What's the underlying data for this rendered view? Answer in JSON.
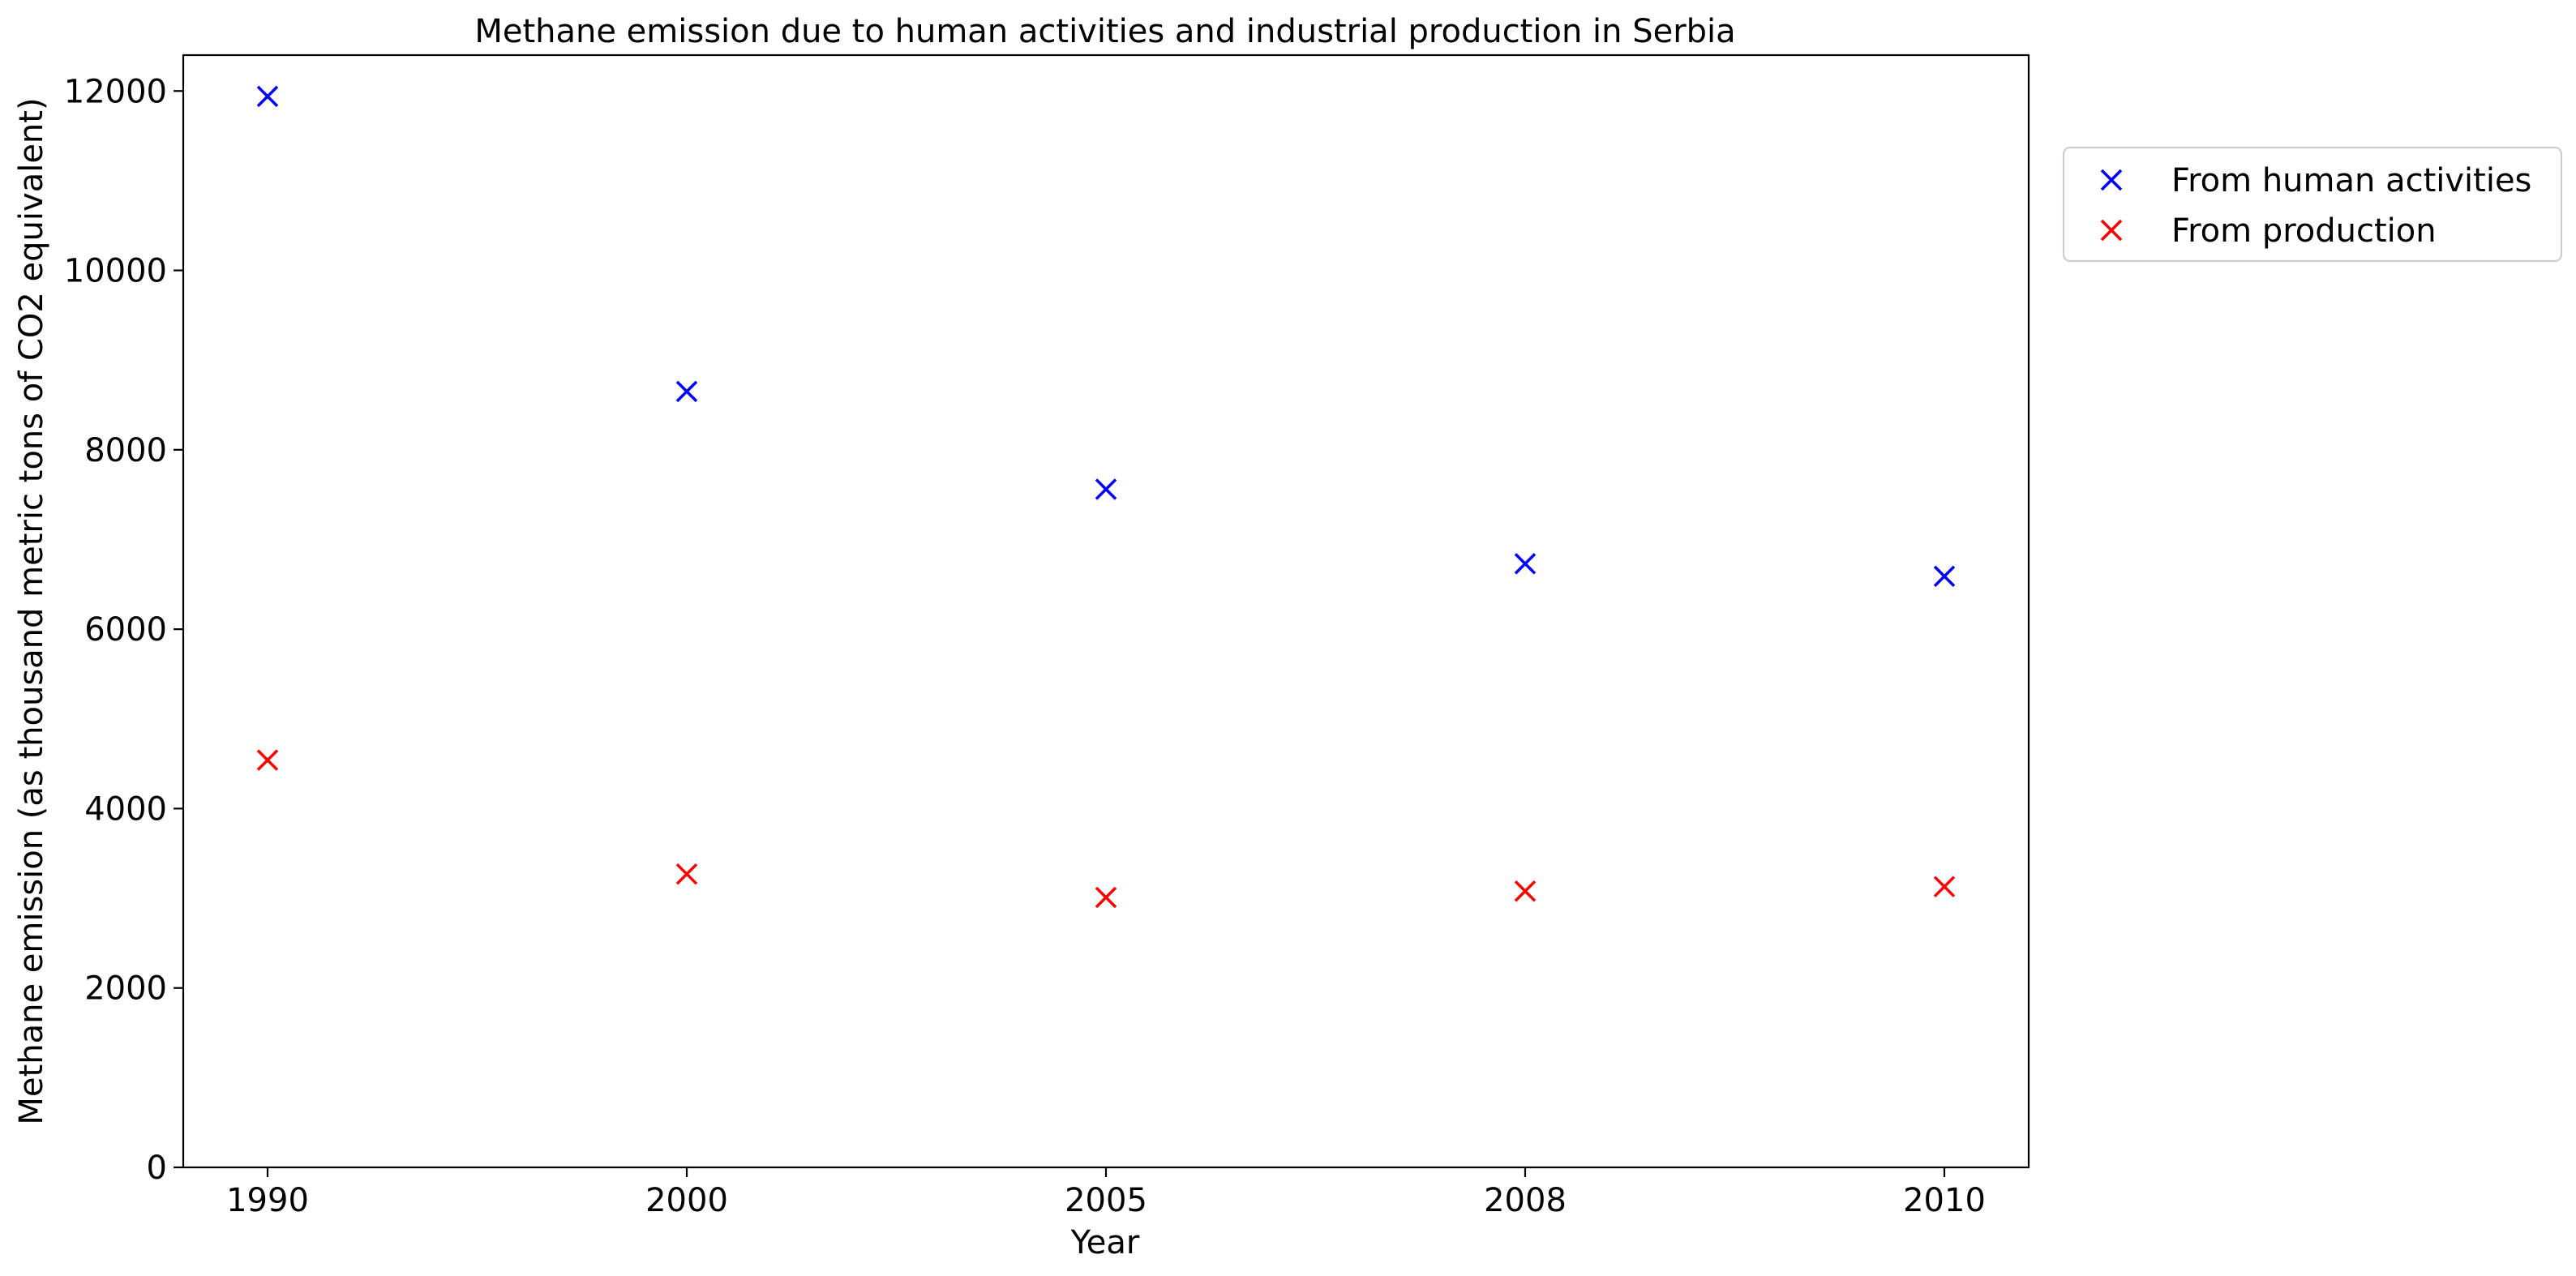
{
  "chart_data": {
    "type": "scatter",
    "title": "Methane emission due to human activities and industrial production in Serbia",
    "xlabel": "Year",
    "ylabel": "Methane emission (as thousand metric tons of CO2 equivalent)",
    "categories": [
      "1990",
      "2000",
      "2005",
      "2008",
      "2010"
    ],
    "ylim": [
      0,
      12400
    ],
    "yticks": [
      0,
      2000,
      4000,
      6000,
      8000,
      10000,
      12000
    ],
    "grid": false,
    "legend_position": "outside-top-right",
    "marker": "x",
    "series": [
      {
        "name": "From human activities",
        "color": "#0000ff",
        "values": [
          11940,
          8650,
          7560,
          6730,
          6590
        ]
      },
      {
        "name": "From production",
        "color": "#ff0000",
        "values": [
          4540,
          3270,
          3010,
          3080,
          3130
        ]
      }
    ]
  }
}
